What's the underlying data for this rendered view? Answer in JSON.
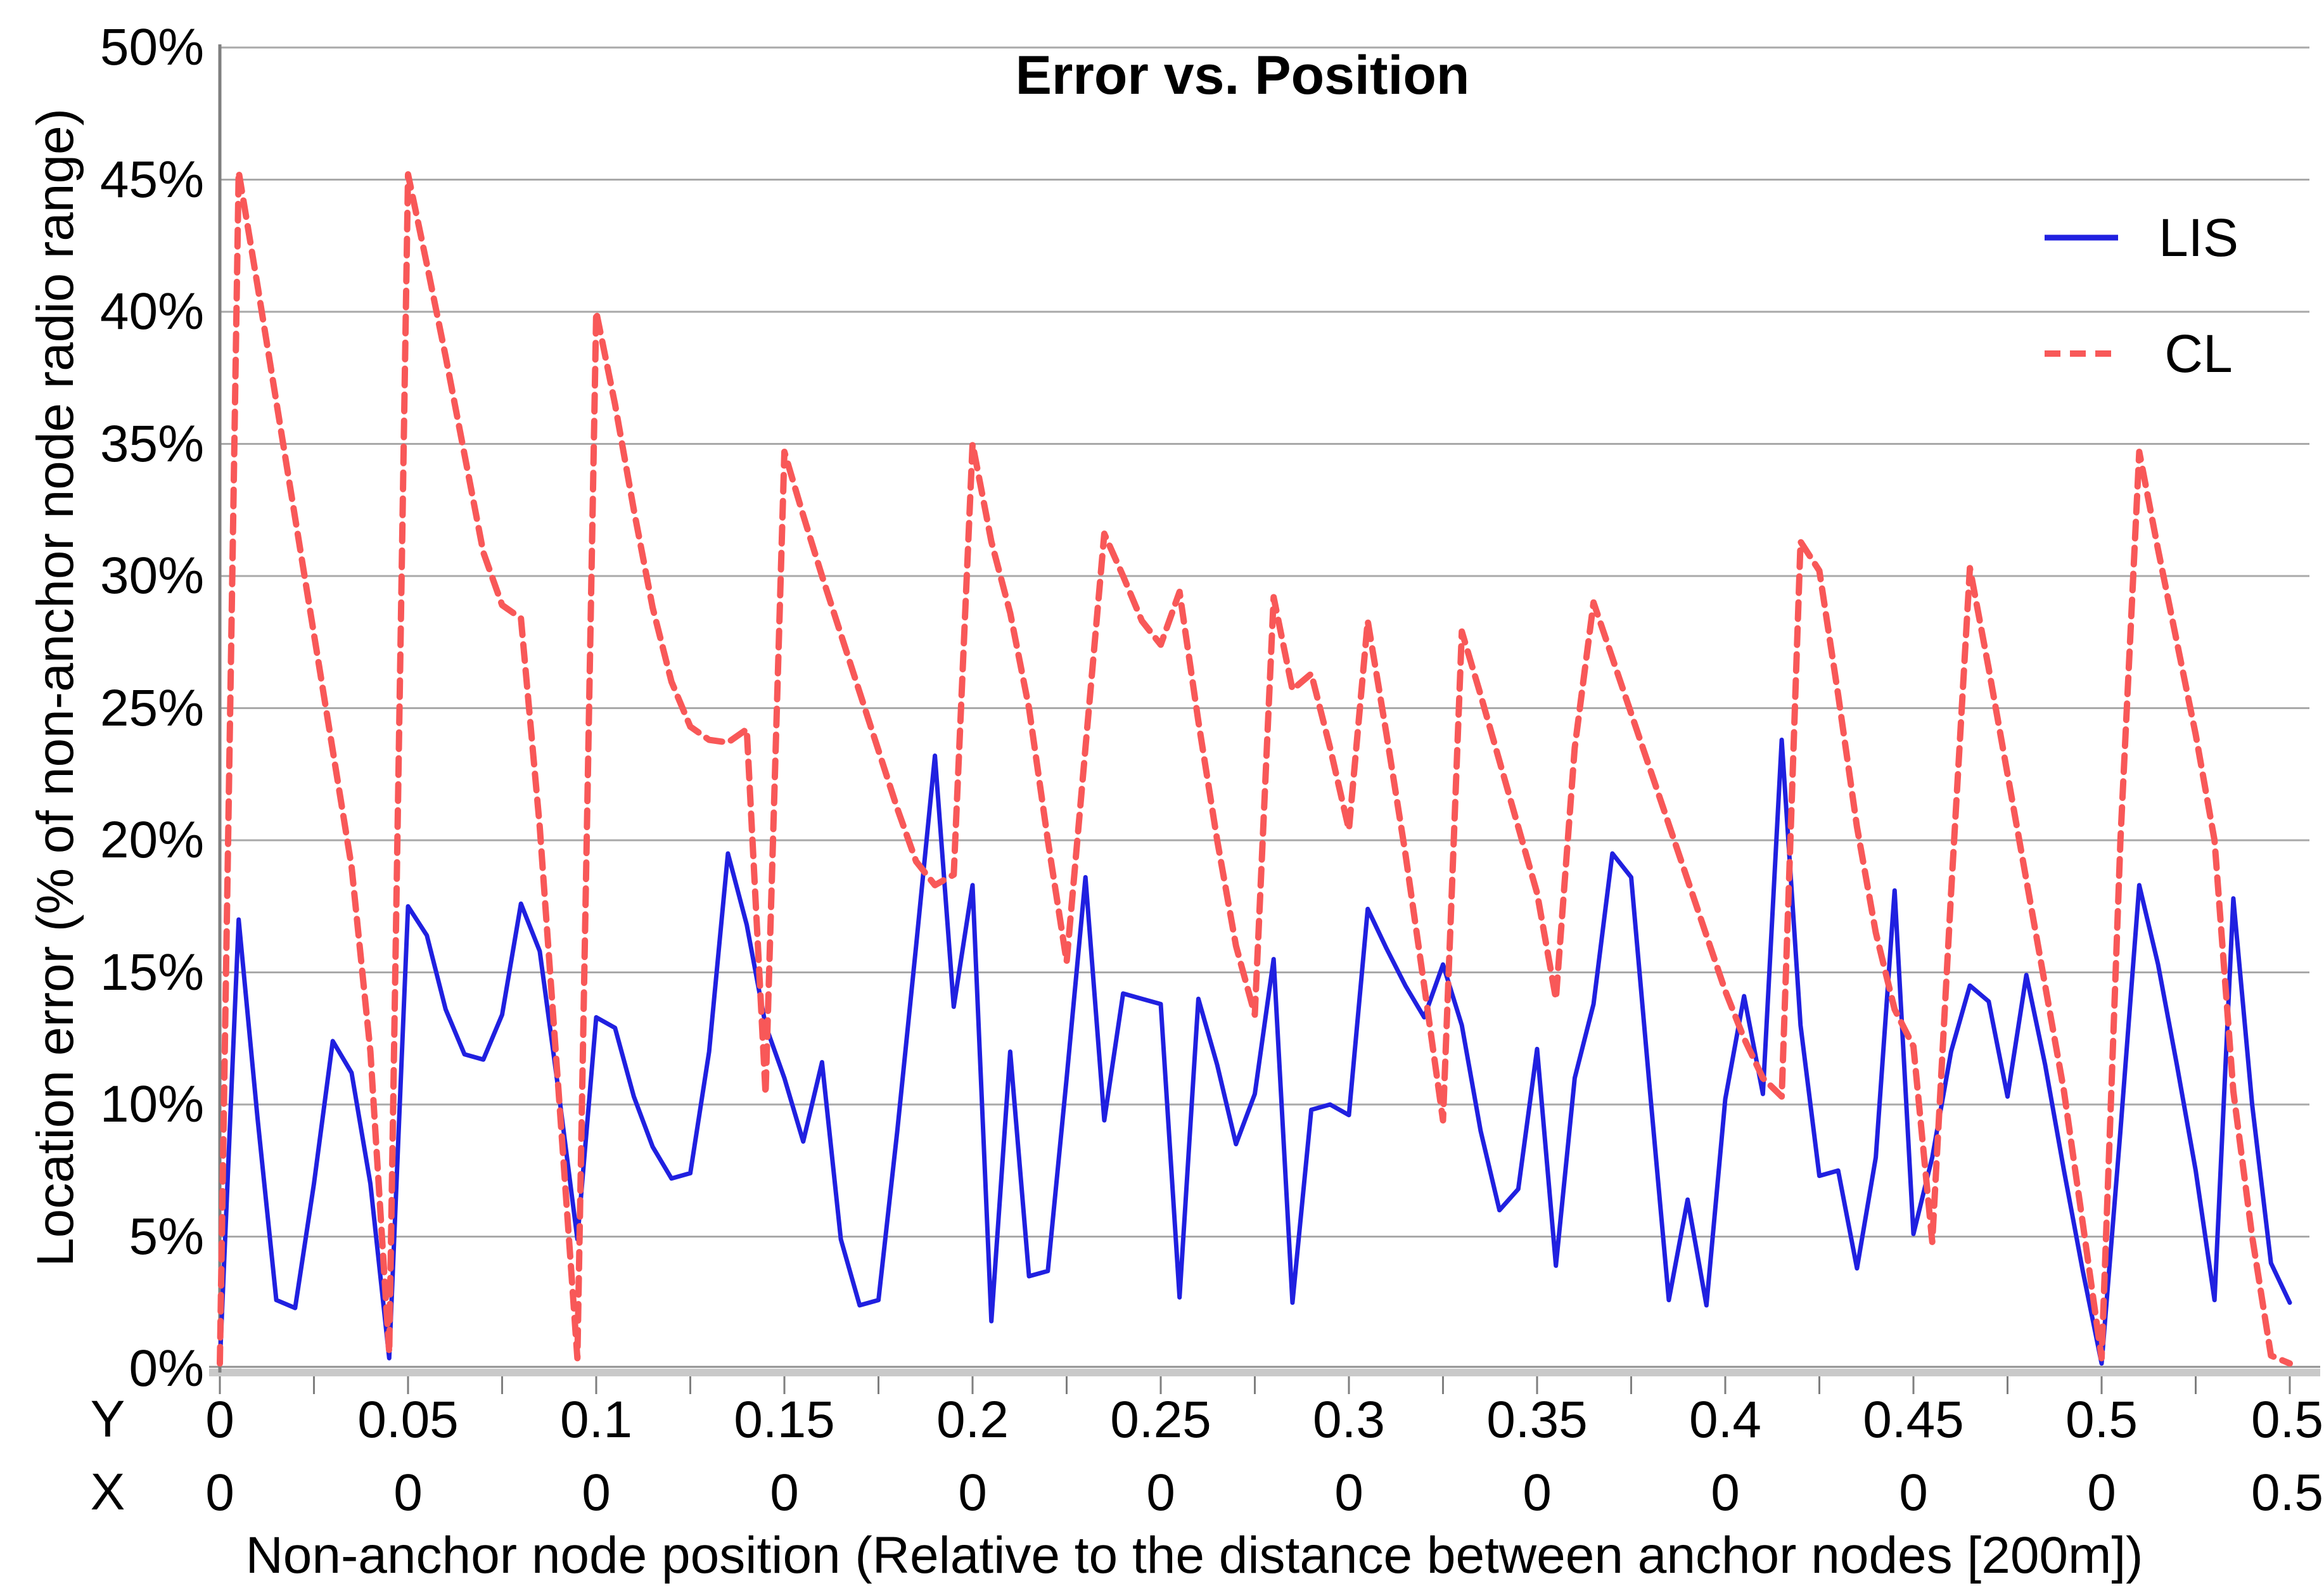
{
  "title": "Error vs. Position",
  "legend": {
    "items": [
      {
        "label": "LIS",
        "color": "#2020E0",
        "style": "solid"
      },
      {
        "label": "CL",
        "color": "#F85858",
        "style": "dashed"
      }
    ]
  },
  "y_axis": {
    "title": "Location error (% of non-anchor node radio range)",
    "tick_labels": [
      "0%",
      "5%",
      "10%",
      "15%",
      "20%",
      "25%",
      "30%",
      "35%",
      "40%",
      "45%",
      "50%"
    ]
  },
  "x_axis": {
    "title": "Non-anchor node position (Relative to the distance between anchor nodes [200m])",
    "row_headers": [
      "Y",
      "X"
    ],
    "y_row_labels": [
      "0",
      "0.05",
      "0.1",
      "0.15",
      "0.2",
      "0.25",
      "0.3",
      "0.35",
      "0.4",
      "0.45",
      "0.5",
      "0.5"
    ],
    "x_row_labels": [
      "0",
      "0",
      "0",
      "0",
      "0",
      "0",
      "0",
      "0",
      "0",
      "0",
      "0",
      "0.5"
    ]
  },
  "chart_data": {
    "type": "line",
    "title": "Error vs. Position",
    "xlabel": "Non-anchor node position (Relative to the distance between anchor nodes [200m])",
    "ylabel": "Location error (% of non-anchor node radio range)",
    "ylim": [
      0,
      50
    ],
    "y_tick_step": 5,
    "y_unit": "%",
    "grid": true,
    "legend_position": "inside-top-right",
    "x_start": 0,
    "x_step": 0.005,
    "x_major_label_every": 10,
    "series": [
      {
        "name": "LIS",
        "color": "#2020E0",
        "dash": "solid",
        "values": [
          0.2,
          17.0,
          9.5,
          2.6,
          2.3,
          7.0,
          12.4,
          11.2,
          7.0,
          0.4,
          17.5,
          16.4,
          13.6,
          11.9,
          11.7,
          13.4,
          17.6,
          15.8,
          10.5,
          4.9,
          13.3,
          12.9,
          10.3,
          8.4,
          7.2,
          7.4,
          12.0,
          19.5,
          16.8,
          13.0,
          11.0,
          8.6,
          11.6,
          4.9,
          2.4,
          2.6,
          9.0,
          16.0,
          23.2,
          13.7,
          18.3,
          1.8,
          12.0,
          3.5,
          3.7,
          11.0,
          18.6,
          9.4,
          14.2,
          14.0,
          13.8,
          2.7,
          14.0,
          11.5,
          8.5,
          10.4,
          15.5,
          2.5,
          9.8,
          10.0,
          9.6,
          17.4,
          15.9,
          14.5,
          13.3,
          15.3,
          13.0,
          9.0,
          6.0,
          6.8,
          12.1,
          3.9,
          11.0,
          13.8,
          19.5,
          18.6,
          10.5,
          2.6,
          6.4,
          2.4,
          10.2,
          14.1,
          10.4,
          23.8,
          13.0,
          7.3,
          7.5,
          3.8,
          8.0,
          18.1,
          5.1,
          8.0,
          12.0,
          14.5,
          13.9,
          10.3,
          14.9,
          11.5,
          7.5,
          3.7,
          0.2,
          9.0,
          18.3,
          15.3,
          11.5,
          7.5,
          2.6,
          17.8,
          10.0,
          4.0,
          2.5
        ]
      },
      {
        "name": "CL",
        "color": "#F85858",
        "dash": "dashed",
        "values": [
          0.2,
          45.3,
          41.0,
          36.6,
          32.2,
          27.8,
          23.4,
          19.0,
          12.0,
          0.6,
          45.2,
          41.8,
          38.3,
          34.6,
          30.9,
          28.9,
          28.4,
          20.5,
          10.5,
          0.4,
          40.0,
          36.5,
          32.5,
          28.8,
          26.0,
          24.3,
          23.8,
          23.7,
          24.2,
          10.4,
          34.7,
          32.3,
          30.0,
          27.8,
          25.6,
          23.4,
          21.2,
          19.2,
          18.3,
          18.7,
          35.0,
          31.3,
          28.6,
          25.0,
          20.0,
          15.4,
          23.5,
          31.6,
          30.0,
          28.3,
          27.4,
          29.4,
          24.5,
          20.0,
          16.0,
          13.4,
          29.2,
          25.7,
          26.3,
          23.5,
          20.4,
          28.3,
          24.0,
          19.5,
          14.5,
          9.4,
          27.9,
          25.5,
          23.0,
          20.5,
          18.0,
          14.0,
          23.5,
          29.0,
          26.9,
          24.8,
          22.7,
          20.6,
          18.5,
          16.4,
          14.3,
          12.5,
          11.0,
          10.3,
          31.3,
          30.2,
          25.5,
          20.5,
          16.5,
          13.6,
          12.2,
          4.8,
          18.0,
          30.3,
          26.5,
          22.5,
          18.5,
          14.5,
          10.5,
          5.5,
          0.4,
          20.0,
          34.7,
          31.0,
          27.5,
          24.0,
          20.0,
          10.5,
          5.0,
          0.5,
          0.2
        ]
      }
    ]
  }
}
